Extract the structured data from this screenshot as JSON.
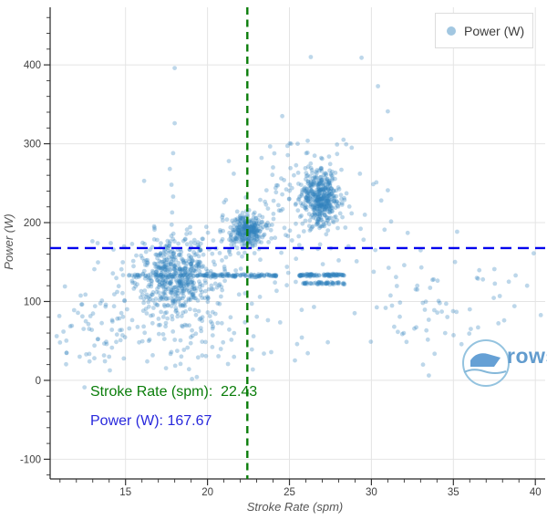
{
  "chart_data": {
    "type": "scatter",
    "title": "",
    "xlabel": "Stroke Rate (spm)",
    "ylabel": "Power (W)",
    "legend": {
      "label": "Power (W)",
      "position": "top-right"
    },
    "xlim": [
      10.4,
      40.6
    ],
    "ylim": [
      -125,
      473
    ],
    "x_major_ticks": [
      15,
      20,
      25,
      30,
      35,
      40
    ],
    "x_minor_step": 1,
    "y_major_ticks": [
      -100,
      0,
      100,
      200,
      300,
      400
    ],
    "y_minor_step": 20,
    "grid": true,
    "grid_color": "#e4e4e4",
    "spine_color": "#262626",
    "tick_label_color": "#404040",
    "marker": {
      "color": "#3182bd",
      "opacity": 0.32,
      "radius": 2.4
    },
    "crosshair": {
      "stroke_rate": 22.43,
      "power": 167.67,
      "vline_color": "#0a7d0a",
      "hline_color": "#0000ee"
    },
    "annotations": [
      {
        "text": "Stroke Rate (spm):  22.43",
        "color": "#0a7d0a"
      },
      {
        "text": "Power (W): 167.67",
        "color": "#2828dc"
      }
    ],
    "point_generation": {
      "seed": 1337,
      "clusters": [
        {
          "cx": 18.1,
          "cy": 131,
          "sx": 1.05,
          "sy": 24,
          "n": 430
        },
        {
          "cx": 18.0,
          "cy": 103,
          "sx": 1.9,
          "sy": 46,
          "n": 170
        },
        {
          "cx": 13.2,
          "cy": 70,
          "sx": 1.5,
          "sy": 38,
          "n": 55
        },
        {
          "cx": 22.4,
          "cy": 189,
          "sx": 0.5,
          "sy": 10,
          "n": 260
        },
        {
          "cx": 22.3,
          "cy": 178,
          "sx": 1.1,
          "sy": 28,
          "n": 55
        },
        {
          "cx": 26.9,
          "cy": 231,
          "sx": 0.58,
          "sy": 17,
          "n": 390
        },
        {
          "cx": 26.8,
          "cy": 226,
          "sx": 1.2,
          "sy": 34,
          "n": 85
        },
        {
          "cx": 20.5,
          "cy": 58,
          "sx": 3.0,
          "sy": 34,
          "n": 60
        },
        {
          "cx": 33.5,
          "cy": 95,
          "sx": 3.2,
          "sy": 40,
          "n": 65
        },
        {
          "cx": 24.6,
          "cy": 220,
          "sx": 1.0,
          "sy": 42,
          "n": 40
        }
      ],
      "bands": [
        {
          "x0": 14.8,
          "x1": 19.5,
          "y": 133,
          "sy": 1.0,
          "n": 45
        },
        {
          "x0": 19.5,
          "x1": 24.2,
          "y": 133,
          "sy": 0.9,
          "n": 110
        },
        {
          "x0": 25.6,
          "x1": 28.4,
          "y": 133.5,
          "sy": 0.8,
          "n": 90
        },
        {
          "x0": 25.8,
          "x1": 28.4,
          "y": 123,
          "sy": 0.8,
          "n": 55
        }
      ],
      "outliers": [
        [
          18.0,
          396
        ],
        [
          26.3,
          410
        ],
        [
          29.4,
          409
        ],
        [
          30.4,
          373
        ],
        [
          31.0,
          341
        ],
        [
          18.0,
          326
        ],
        [
          31.2,
          306
        ],
        [
          25.5,
          300
        ],
        [
          28.8,
          295
        ],
        [
          23.3,
          282
        ],
        [
          17.9,
          288
        ],
        [
          17.7,
          268
        ],
        [
          17.8,
          248
        ],
        [
          17.9,
          233
        ],
        [
          21.3,
          278
        ],
        [
          21.6,
          262
        ],
        [
          24.0,
          270
        ],
        [
          29.3,
          262
        ],
        [
          30.3,
          251
        ],
        [
          31.0,
          241
        ],
        [
          30.6,
          228
        ],
        [
          24.5,
          256
        ],
        [
          23.6,
          241
        ],
        [
          29.6,
          210
        ],
        [
          30.8,
          191
        ],
        [
          13.3,
          174
        ],
        [
          14.1,
          174
        ],
        [
          15.4,
          173
        ],
        [
          11.0,
          48
        ],
        [
          11.4,
          35
        ],
        [
          12.2,
          30
        ],
        [
          12.6,
          33
        ],
        [
          13.1,
          28
        ],
        [
          12.8,
          24
        ],
        [
          14.0,
          30
        ],
        [
          10.8,
          56
        ],
        [
          33.0,
          165
        ],
        [
          35.1,
          150
        ],
        [
          37.5,
          141
        ],
        [
          39.5,
          120
        ],
        [
          36.0,
          90
        ],
        [
          38.1,
          76
        ],
        [
          34.5,
          60
        ],
        [
          32.0,
          146
        ],
        [
          31.5,
          131
        ],
        [
          33.8,
          128
        ],
        [
          36.5,
          129
        ],
        [
          36.8,
          128
        ],
        [
          38.8,
          133
        ],
        [
          39.9,
          161
        ],
        [
          28.6,
          170
        ],
        [
          29.1,
          151
        ],
        [
          25.1,
          300
        ],
        [
          27.9,
          299
        ],
        [
          28.3,
          305
        ]
      ]
    }
  },
  "watermark": {
    "text": "rows"
  }
}
